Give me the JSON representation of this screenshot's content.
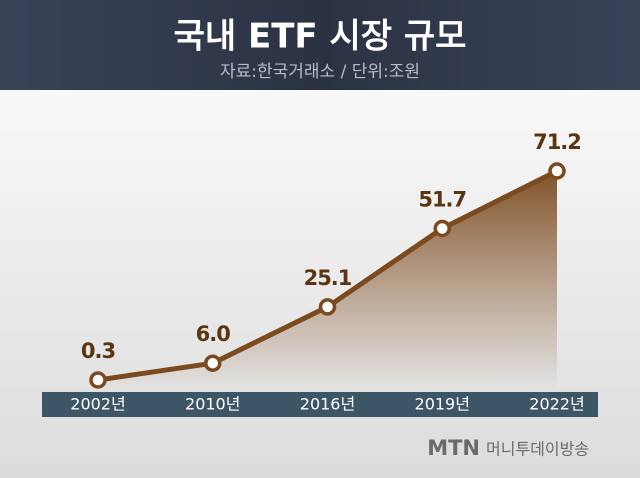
{
  "chart_data": {
    "type": "line",
    "title": "국내 ETF 시장 규모",
    "subtitle": "자료:한국거래소 / 단위:조원",
    "categories": [
      "2002년",
      "2010년",
      "2016년",
      "2019년",
      "2022년"
    ],
    "values": [
      0.3,
      6.0,
      25.1,
      51.7,
      71.2
    ],
    "value_labels": [
      "0.3",
      "6.0",
      "25.1",
      "51.7",
      "71.2"
    ],
    "color": "#7b4a1e",
    "source": {
      "brand": "MTN",
      "name": "머니투데이방송"
    }
  }
}
